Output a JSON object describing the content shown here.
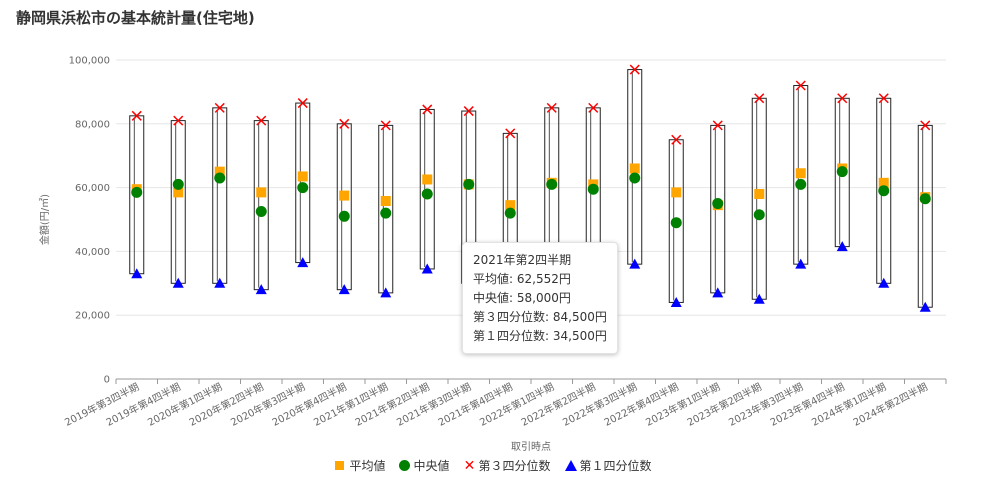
{
  "title": "静岡県浜松市の基本統計量(住宅地)",
  "chart_data": {
    "type": "box",
    "categories": [
      "2019年第3四半期",
      "2019年第4四半期",
      "2020年第1四半期",
      "2020年第2四半期",
      "2020年第3四半期",
      "2020年第4四半期",
      "2021年第1四半期",
      "2021年第2四半期",
      "2021年第3四半期",
      "2021年第4四半期",
      "2022年第1四半期",
      "2022年第2四半期",
      "2022年第3四半期",
      "2022年第4四半期",
      "2023年第1四半期",
      "2023年第2四半期",
      "2023年第3四半期",
      "2023年第4四半期",
      "2024年第1四半期",
      "2024年第2四半期"
    ],
    "series": [
      {
        "name": "平均値",
        "marker": "square",
        "color": "#ffa500",
        "values": [
          59500,
          58500,
          65000,
          58500,
          63500,
          57500,
          55800,
          62552,
          61000,
          54500,
          61500,
          61000,
          66000,
          58500,
          54500,
          58000,
          64500,
          66000,
          61500,
          57000
        ]
      },
      {
        "name": "中央値",
        "marker": "circle",
        "color": "#008000",
        "values": [
          58500,
          61000,
          63000,
          52500,
          60000,
          51000,
          52000,
          58000,
          61000,
          52000,
          61000,
          59500,
          63000,
          49000,
          55000,
          51500,
          61000,
          65000,
          59000,
          56500
        ]
      },
      {
        "name": "第３四分位数",
        "marker": "cross",
        "color": "#ff0000",
        "values": [
          82500,
          81000,
          85000,
          81000,
          86500,
          80000,
          79500,
          84500,
          84000,
          77000,
          85000,
          85000,
          97000,
          75000,
          79500,
          88000,
          92000,
          88000,
          88000,
          79500
        ]
      },
      {
        "name": "第１四分位数",
        "marker": "triangle",
        "color": "#0000ff",
        "values": [
          33000,
          30000,
          30000,
          28000,
          36500,
          28000,
          27000,
          34500,
          30000,
          29000,
          29000,
          30000,
          36000,
          24000,
          27000,
          25000,
          36000,
          41500,
          30000,
          22500
        ]
      }
    ],
    "yaxis": {
      "min": 0,
      "max": 100000,
      "ticks": [
        0,
        20000,
        40000,
        60000,
        80000,
        100000
      ],
      "tick_labels": [
        "0",
        "20,000",
        "40,000",
        "60,000",
        "80,000",
        "100,000"
      ]
    },
    "ylabel": "金額(円/㎡)",
    "xlabel": "取引時点",
    "grid": true,
    "legend": "bottom-center"
  },
  "tooltip": {
    "title": "2021年第2四半期",
    "lines": [
      "平均値: 62,552円",
      "中央値: 58,000円",
      "第３四分位数: 84,500円",
      "第１四分位数: 34,500円"
    ]
  }
}
